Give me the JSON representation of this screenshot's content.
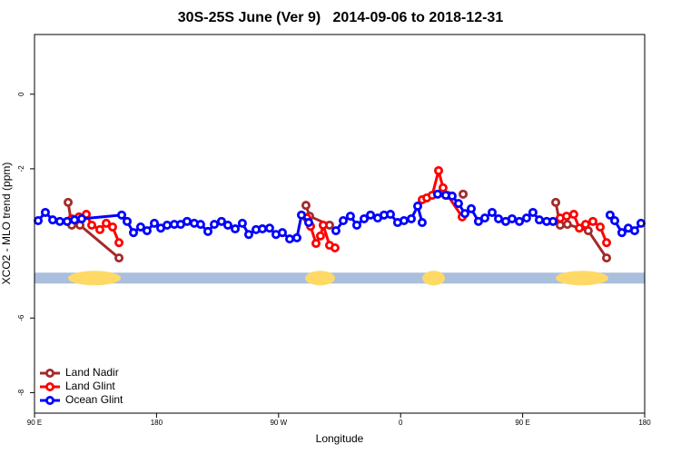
{
  "chart_data": {
    "type": "line",
    "title": "30S-25S June (Ver 9)   2014-09-06 to 2018-12-31",
    "x_label": "Longitude",
    "y_label": "XCO2 - MLO trend (ppm)",
    "xlim": [
      90,
      540
    ],
    "ylim": [
      -8.55,
      1.6
    ],
    "xticks": [
      {
        "value": 90,
        "label": "90 E"
      },
      {
        "value": 180,
        "label": "180"
      },
      {
        "value": 270,
        "label": "90 W"
      },
      {
        "value": 360,
        "label": "0"
      },
      {
        "value": 450,
        "label": "90 E"
      },
      {
        "value": 540,
        "label": "180"
      }
    ],
    "yticks": [
      0,
      -2,
      -6,
      -8
    ],
    "legend": "bottom-left",
    "band_y": -4.93,
    "band_color": "#a9bfdc",
    "land_color": "#ffd966",
    "land_spans": [
      [
        114.8,
        153.6
      ],
      [
        289.6,
        311.6
      ],
      [
        376,
        392.7
      ],
      [
        474.4,
        513.2
      ]
    ],
    "series": [
      {
        "name": "Land Nadir",
        "color": "#a52a2a",
        "x": [
          114.8,
          117.5,
          123.5,
          152.3,
          null,
          290.2,
          292.9,
          307.6,
          null,
          406.1,
          null,
          474.4,
          477.7,
          483,
          498.4,
          511.9
        ],
        "values": [
          -2.9,
          -3.51,
          -3.51,
          -4.39,
          null,
          -2.98,
          -3.27,
          -3.51,
          null,
          -2.68,
          null,
          -2.9,
          -3.51,
          -3.49,
          -3.66,
          -4.39
        ]
      },
      {
        "name": "Land Glint",
        "color": "#ff0000",
        "x": [
          117.5,
          122.8,
          128.2,
          132.2,
          138.2,
          142.9,
          147.6,
          152.3,
          null,
          290.9,
          293.6,
          297.6,
          300.9,
          302.9,
          307.6,
          311.6,
          null,
          375.9,
          379.3,
          383.3,
          388,
          391.3,
          394.7,
          405.4,
          null,
          477.7,
          482.4,
          487.7,
          491.8,
          496.4,
          501.8,
          507.2,
          511.9
        ],
        "values": [
          -3.34,
          -3.29,
          -3.22,
          -3.51,
          -3.63,
          -3.46,
          -3.56,
          -3.98,
          null,
          -3.32,
          -3.54,
          -4.0,
          -3.8,
          -3.51,
          -4.05,
          -4.12,
          null,
          -2.83,
          -2.78,
          -2.71,
          -2.05,
          -2.51,
          -2.71,
          -3.29,
          null,
          -3.32,
          -3.27,
          -3.22,
          -3.59,
          -3.49,
          -3.41,
          -3.56,
          -3.98
        ]
      },
      {
        "name": "Ocean Glint",
        "color": "#0000ff",
        "x": [
          92.7,
          98,
          103.4,
          108.7,
          114.1,
          119.5,
          124.8,
          154.3,
          158.3,
          163,
          168.3,
          173,
          178.4,
          183.1,
          187.8,
          193.1,
          197.8,
          202.5,
          207.8,
          212.5,
          217.9,
          222.6,
          227.9,
          232.6,
          238,
          243.3,
          248,
          253.4,
          258.1,
          263.4,
          268.1,
          272.8,
          278.2,
          283.5,
          286.9,
          292.2,
          null,
          312.3,
          317.7,
          323,
          327.7,
          333.1,
          337.8,
          343.1,
          347.8,
          352.5,
          357.8,
          362.5,
          367.9,
          372.6,
          375.9,
          null,
          387.3,
          393.3,
          398,
          402.7,
          407.4,
          412.1,
          417.4,
          422.1,
          427.5,
          432.2,
          437.5,
          442.2,
          447.6,
          452.9,
          457.6,
          462.3,
          467.7,
          472.4,
          null,
          514.5,
          517.9,
          523.2,
          527.9,
          532.6,
          537.3
        ],
        "values": [
          -3.39,
          -3.17,
          -3.37,
          -3.41,
          -3.41,
          -3.37,
          -3.34,
          -3.24,
          -3.41,
          -3.71,
          -3.56,
          -3.66,
          -3.46,
          -3.59,
          -3.51,
          -3.49,
          -3.49,
          -3.41,
          -3.46,
          -3.49,
          -3.68,
          -3.49,
          -3.41,
          -3.51,
          -3.61,
          -3.46,
          -3.76,
          -3.63,
          -3.61,
          -3.59,
          -3.76,
          -3.71,
          -3.88,
          -3.85,
          -3.24,
          -3.44,
          null,
          -3.66,
          -3.39,
          -3.27,
          -3.51,
          -3.34,
          -3.24,
          -3.32,
          -3.24,
          -3.22,
          -3.44,
          -3.39,
          -3.34,
          -3.0,
          -3.44,
          null,
          -2.68,
          -2.71,
          -2.73,
          -2.93,
          -3.2,
          -3.07,
          -3.41,
          -3.32,
          -3.17,
          -3.34,
          -3.41,
          -3.34,
          -3.41,
          -3.32,
          -3.17,
          -3.37,
          -3.41,
          -3.41,
          null,
          -3.24,
          -3.39,
          -3.71,
          -3.59,
          -3.66,
          -3.46
        ]
      }
    ]
  }
}
